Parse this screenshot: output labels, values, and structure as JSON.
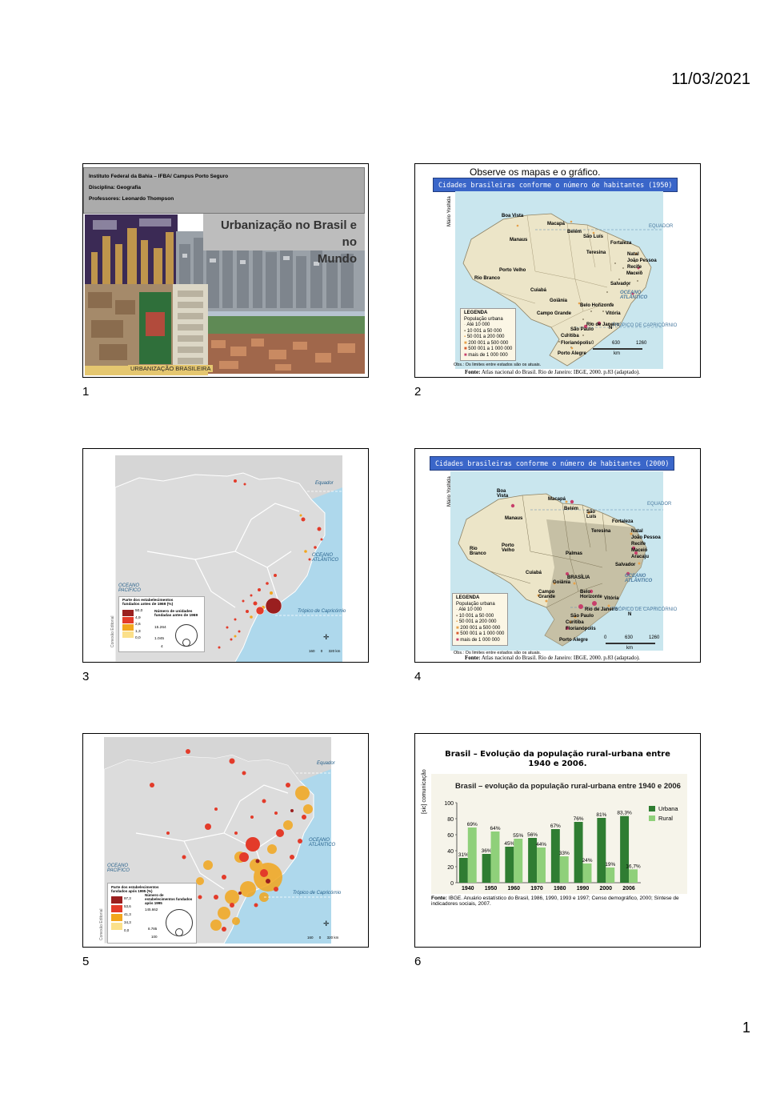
{
  "document": {
    "date": "11/03/2021",
    "page_number": "1",
    "slide_numbers": [
      "1",
      "2",
      "3",
      "4",
      "5",
      "6"
    ]
  },
  "slide1": {
    "institution": "Instituto Federal da Bahia – IFBA/ Campus Porto Seguro",
    "discipline": "Disciplina: Geografia",
    "teachers": "Professores: Leonardo Thompson",
    "title_line1": "Urbanização no Brasil e no",
    "title_line2": "Mundo",
    "photo_caption": "URBANIZAÇÃO BRASILEIRA"
  },
  "slide2": {
    "intro": "Observe os mapas e o gráfico.",
    "map_title": "Cidades brasileiras conforme o número de habitantes (1950)",
    "author": "Mário Yoshida",
    "legend_title": "LEGENDA",
    "legend_subtitle": "População urbana",
    "legend_items": [
      "Até 10 000",
      "10 001  a  50 000",
      "50 001  a  200 000",
      "200 001  a  500 000",
      "500 001  a  1 000 000",
      "mais de 1 000 000"
    ],
    "note": "Obs.: Os limites entre estados são os atuais.",
    "source_label": "Fonte:",
    "source_text": "Atlas nacional do Brasil. Rio de Janeiro: IBGE, 2000. p.83 (adaptado).",
    "cities": [
      "Boa Vista",
      "Macapá",
      "Belém",
      "São Luís",
      "Fortaleza",
      "Manaus",
      "Teresina",
      "Natal",
      "João Pessoa",
      "Recife",
      "Porto Velho",
      "Maceió",
      "Rio Branco",
      "Salvador",
      "Cuiabá",
      "Goiânia",
      "Belo Horizonte",
      "Campo Grande",
      "Vitória",
      "São Paulo",
      "Rio de Janeiro",
      "Curitiba",
      "Florianópolis",
      "Porto Alegre"
    ],
    "equator": "EQUADOR",
    "tropic": "TRÓPICO DE CAPRICÓRNIO",
    "ocean": "OCEANO ATLÂNTICO",
    "scale": [
      "0",
      "630",
      "1260"
    ],
    "scale_unit": "km",
    "north": "N"
  },
  "slide3": {
    "legend_title": "Parte dos estabelecimentos fundados antes de 1969 (%)",
    "legend_values": [
      "50,0",
      "4,9",
      "2,6",
      "1,3",
      "0,0"
    ],
    "circle_title": "Número de unidades fundadas antes de 1969",
    "circle_values": [
      "15.264",
      "1.045",
      "4"
    ],
    "equator": "Equador",
    "tropic": "Trópico de Capricórnio",
    "ocean_atl": "OCEANO ATLÂNTICO",
    "ocean_pac": "OCEANO PACÍFICO",
    "publisher": "Conexão Editorial",
    "scale": [
      "160",
      "0",
      "320 km"
    ]
  },
  "slide4": {
    "map_title": "Cidades brasileiras conforme o número de habitantes (2000)",
    "author": "Mário Yoshida",
    "legend_title": "LEGENDA",
    "legend_subtitle": "População urbana",
    "legend_items": [
      "Até 10 000",
      "10 001  a  50 000",
      "50 001  a  200 000",
      "200 001  a  500 000",
      "500 001  a  1 000 000",
      "mais de 1 000 000"
    ],
    "note": "Obs.: Os limites entre estados são os atuais.",
    "source_label": "Fonte:",
    "source_text": "Atlas nacional do Brasil. Rio de Janeiro: IBGE, 2000. p.83 (adaptado).",
    "cities": [
      "Boa Vista",
      "Macapá",
      "Belém",
      "São Luís",
      "Manaus",
      "Fortaleza",
      "Teresina",
      "Natal",
      "João Pessoa",
      "Recife",
      "Porto Velho",
      "Palmas",
      "Maceió",
      "Rio Branco",
      "Aracaju",
      "Salvador",
      "Cuiabá",
      "BRASÍLIA",
      "Goiânia",
      "Campo Grande",
      "Belo Horizonte",
      "Vitória",
      "São Paulo",
      "Rio de Janeiro",
      "Curitiba",
      "Florianópolis",
      "Porto Alegre"
    ],
    "equator": "EQUADOR",
    "tropic": "TRÓPICO DE CAPRICÓRNIO",
    "ocean": "OCEANO ATLÂNTICO",
    "scale": [
      "0",
      "630",
      "1260"
    ],
    "scale_unit": "km",
    "north": "N"
  },
  "slide5": {
    "legend_title": "Parte dos estabelecimentos fundados após 1995 (%)",
    "legend_values": [
      "97,3",
      "53,6",
      "41,3",
      "34,3",
      "0,0"
    ],
    "circle_title": "Número de estabelecimentos fundados após 1995",
    "circle_values": [
      "145.662",
      "8.785",
      "100"
    ],
    "equator": "Equador",
    "tropic": "Trópico de Capricórnio",
    "ocean_atl": "OCEANO ATLÂNTICO",
    "ocean_pac": "OCEANO PACÍFICO",
    "publisher": "Conexão Editorial",
    "scale": [
      "160",
      "0",
      "320 km"
    ]
  },
  "slide6": {
    "title_line1": "Brasil – Evolução da população rural-urbana entre",
    "title_line2": "1940 e 2006.",
    "side_label": "[sic] comunicação",
    "source_label": "Fonte:",
    "source_text": "IBGE. Anuário estatístico do Brasil, 1986, 1990, 1993 e 1997; Censo demográfico, 2000; Síntese de indicadores sociais, 2007."
  },
  "chart_data": {
    "type": "bar",
    "title": "Brasil – evolução da população rural-urbana entre 1940 e 2006",
    "categories": [
      "1940",
      "1950",
      "1960",
      "1970",
      "1980",
      "1990",
      "2000",
      "2006"
    ],
    "series": [
      {
        "name": "Urbana",
        "values": [
          31,
          36,
          45,
          56,
          67,
          76,
          81,
          83.3
        ],
        "labels": [
          "31%",
          "36%",
          "45%",
          "56%",
          "67%",
          "76%",
          "81%",
          "83,3%"
        ],
        "color": "#2f7d32"
      },
      {
        "name": "Rural",
        "values": [
          69,
          64,
          55,
          44,
          33,
          24,
          19,
          16.7
        ],
        "labels": [
          "69%",
          "64%",
          "55%",
          "44%",
          "33%",
          "24%",
          "19%",
          "16,7%"
        ],
        "color": "#8fd07a"
      }
    ],
    "ylim": [
      0,
      100
    ],
    "yticks": [
      "0",
      "20",
      "40",
      "60",
      "80",
      "100"
    ],
    "legend_position": "right",
    "grid": false
  }
}
